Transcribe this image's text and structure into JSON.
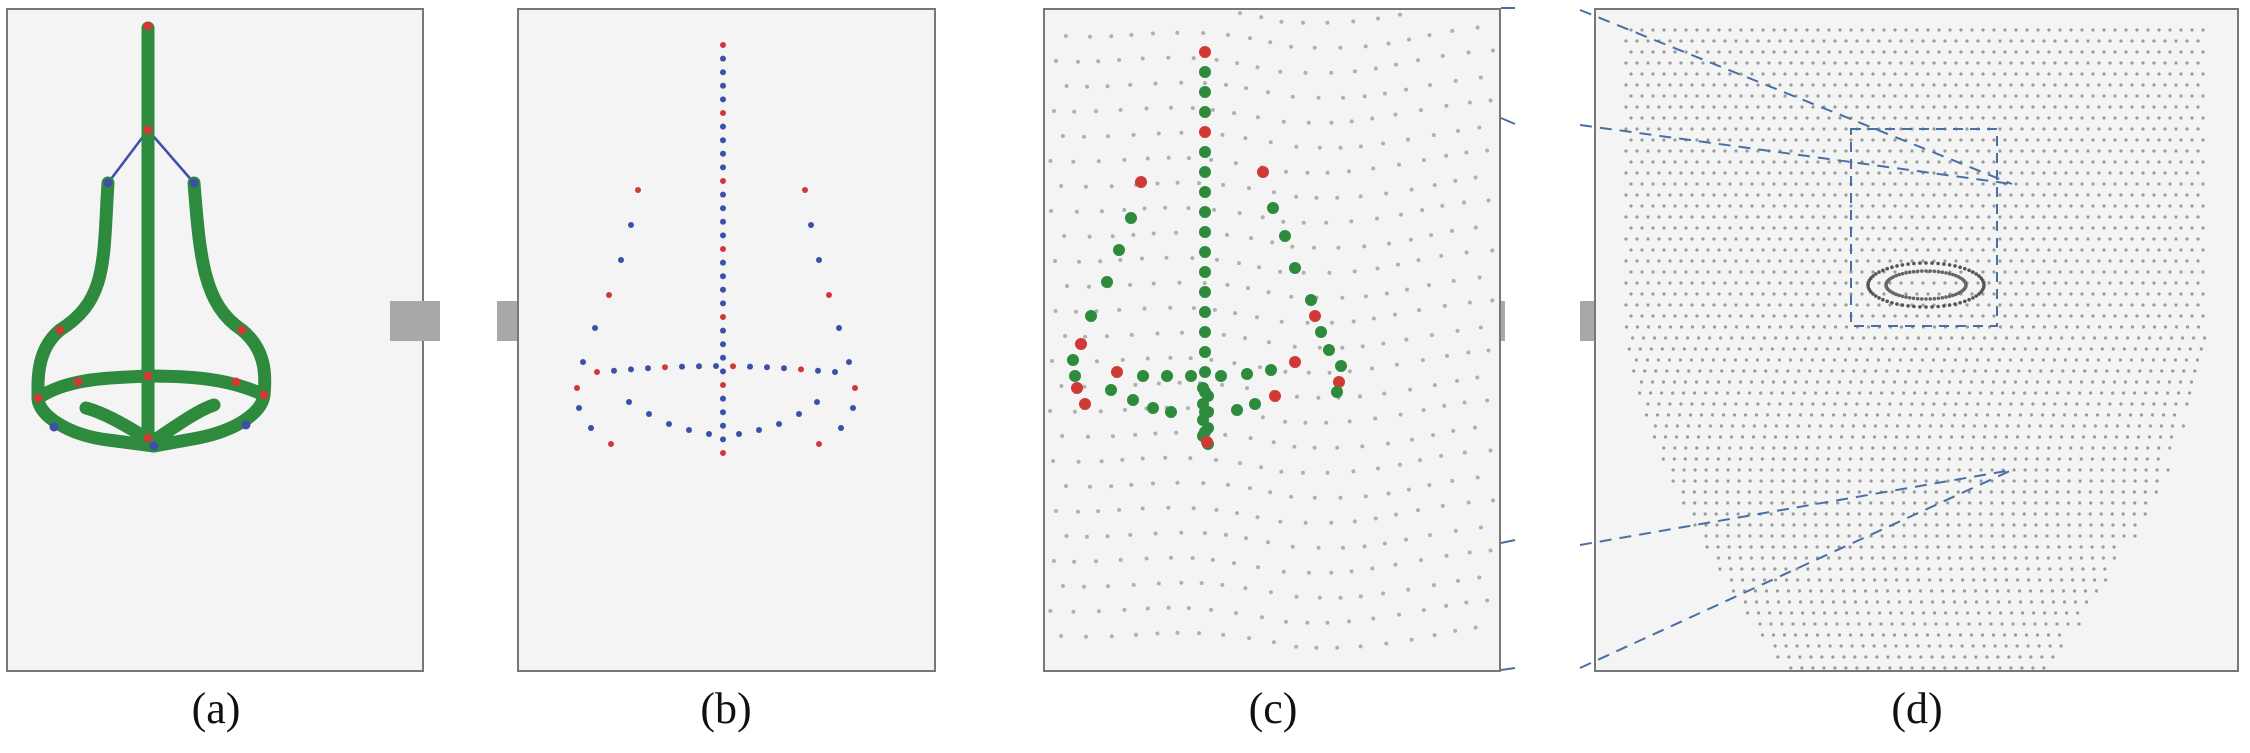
{
  "captions": {
    "a": "(a)",
    "b": "(b)",
    "c": "(c)",
    "d": "(d)"
  },
  "colors": {
    "panel_background": "#f4f4f4",
    "panel_border": "#777777",
    "curve_green": "#2e8b3e",
    "point_red": "#d03a36",
    "point_blue": "#3d4fa8",
    "mesh_gray": "#9a9a9a",
    "arrow_gray": "#a8a8a8",
    "dashed_blue": "#4a6fa5"
  },
  "arrows": [
    {
      "name": "arrow-a-to-b",
      "direction": "right"
    },
    {
      "name": "arrow-d-to-c",
      "direction": "left"
    }
  ]
}
